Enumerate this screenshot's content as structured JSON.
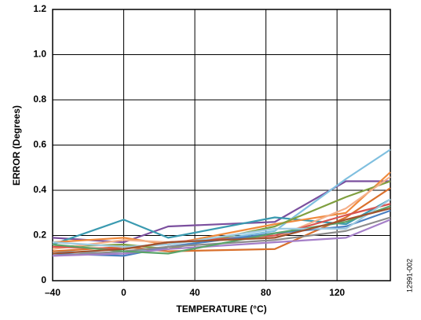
{
  "chart_data": {
    "type": "line",
    "y_label": "ERROR (Degrees)",
    "x_label": "TEMPERATURE (°C)",
    "figure_id": "12991-002",
    "x": [
      -40,
      0,
      25,
      85,
      125,
      150
    ],
    "xlim": [
      -40,
      150
    ],
    "xticks": [
      {
        "value": -40,
        "label": "–40"
      },
      0,
      40,
      80,
      120
    ],
    "ylim": [
      0,
      1.2
    ],
    "yticks": [
      0,
      0.2,
      0.4,
      0.6,
      0.8,
      {
        "value": 1.0,
        "label": "1.0"
      },
      1.2
    ],
    "grid": true,
    "series": [
      {
        "color": "#7b4f9e",
        "values": [
          0.19,
          0.17,
          0.24,
          0.26,
          0.44,
          0.44
        ]
      },
      {
        "color": "#3a9ab0",
        "values": [
          0.16,
          0.27,
          0.19,
          0.28,
          0.25,
          0.36
        ]
      },
      {
        "color": "#7fbfdf",
        "values": [
          0.13,
          0.12,
          0.15,
          0.22,
          0.45,
          0.58
        ]
      },
      {
        "color": "#f08a3c",
        "values": [
          0.17,
          0.19,
          0.16,
          0.25,
          0.3,
          0.48
        ]
      },
      {
        "color": "#7f9f3f",
        "values": [
          0.15,
          0.16,
          0.14,
          0.24,
          0.37,
          0.44
        ]
      },
      {
        "color": "#f4b08a",
        "values": [
          0.14,
          0.18,
          0.17,
          0.19,
          0.32,
          0.46
        ]
      },
      {
        "color": "#d9702c",
        "values": [
          0.13,
          0.15,
          0.13,
          0.14,
          0.28,
          0.41
        ]
      },
      {
        "color": "#d9534f",
        "values": [
          0.15,
          0.14,
          0.17,
          0.2,
          0.29,
          0.34
        ]
      },
      {
        "color": "#4a7fc1",
        "values": [
          0.12,
          0.11,
          0.15,
          0.21,
          0.24,
          0.31
        ]
      },
      {
        "color": "#8c8c8c",
        "values": [
          0.11,
          0.13,
          0.15,
          0.18,
          0.22,
          0.28
        ]
      },
      {
        "color": "#a57fc8",
        "values": [
          0.11,
          0.12,
          0.14,
          0.17,
          0.19,
          0.27
        ]
      },
      {
        "color": "#5aa469",
        "values": [
          0.16,
          0.13,
          0.12,
          0.21,
          0.26,
          0.33
        ]
      },
      {
        "color": "#9ecae1",
        "values": [
          0.17,
          0.15,
          0.16,
          0.23,
          0.23,
          0.36
        ]
      },
      {
        "color": "#a0522d",
        "values": [
          0.12,
          0.14,
          0.17,
          0.19,
          0.27,
          0.32
        ]
      }
    ]
  }
}
